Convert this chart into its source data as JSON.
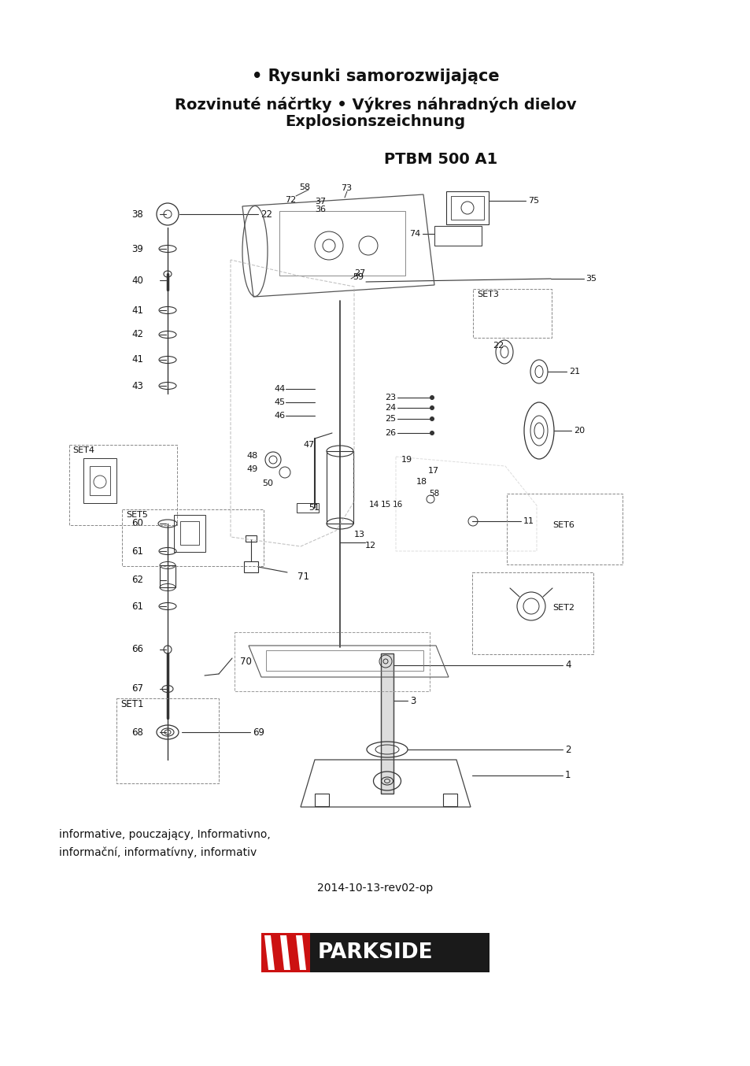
{
  "bg_color": "#ffffff",
  "title1": "• Rysunki samorozwijające",
  "title2_line1": "Rozvinuté náčrtky • Výkres náhradných dielov",
  "title2_line2": "Explosionszeichnung",
  "title3": "PTBM 500 A1",
  "footer_text1": "informative, pouczający, Informativno,",
  "footer_text2": "informační, informatívny, informativ",
  "footer_date": "2014-10-13-rev02-op"
}
